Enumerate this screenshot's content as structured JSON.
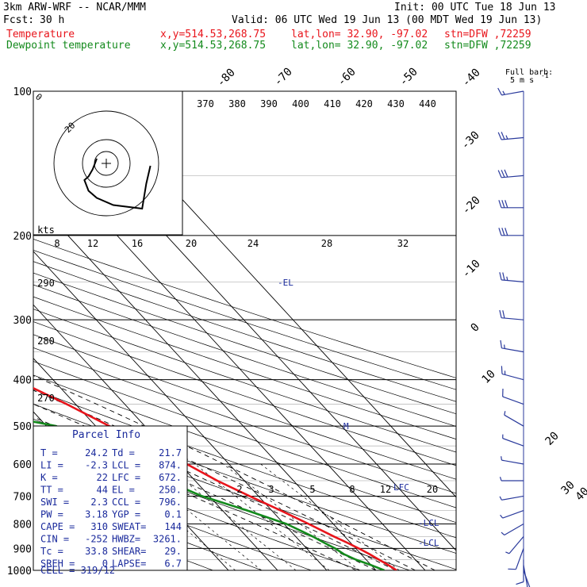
{
  "header": {
    "model": "3km ARW-WRF -- NCAR/MMM",
    "init": "Init: 00 UTC Tue 18 Jun 13",
    "fcst_label": "Fcst:",
    "fcst_value": "30 h",
    "valid": "Valid: 06 UTC Wed 19 Jun 13 (00 MDT Wed 19 Jun 13)",
    "temp_line": {
      "name": "Temperature",
      "xy": "x,y=514.53,268.75",
      "latlon": "lat,lon= 32.90, -97.02",
      "stn": "stn=DFW ,72259"
    },
    "dew_line": {
      "name": "Dewpoint temperature",
      "xy": "x,y=514.53,268.75",
      "latlon": "lat,lon= 32.90, -97.02",
      "stn": "stn=DFW ,72259"
    }
  },
  "colors": {
    "temperature": "#e8141b",
    "dewpoint": "#138a1c",
    "labels": "#1a2a9c",
    "hodograph": "#000000",
    "barbs": "#2a3a9c"
  },
  "barb_legend": {
    "title": "Full barb:",
    "value": "5 m s",
    "exp": "-1"
  },
  "parcel_info": {
    "title": "Parcel Info",
    "rows": [
      {
        "k1": "T   =",
        "v1": "24.2",
        "k2": "Td  =",
        "v2": "21.7"
      },
      {
        "k1": "LI  =",
        "v1": "-2.3",
        "k2": "LCL =",
        "v2": "874."
      },
      {
        "k1": "K   =",
        "v1": "22",
        "k2": "LFC =",
        "v2": "672."
      },
      {
        "k1": "TT  =",
        "v1": "44",
        "k2": "EL  =",
        "v2": "250."
      },
      {
        "k1": "SWI =",
        "v1": "2.3",
        "k2": "CCL =",
        "v2": "796."
      },
      {
        "k1": "PW  =",
        "v1": "3.18",
        "k2": "YGP =",
        "v2": "0.1"
      },
      {
        "k1": "CAPE =",
        "v1": "310",
        "k2": "SWEAT=",
        "v2": "144"
      },
      {
        "k1": "CIN  =",
        "v1": "-252",
        "k2": "HWBZ=",
        "v2": "3261."
      },
      {
        "k1": "Tc  =",
        "v1": "33.8",
        "k2": "SHEAR=",
        "v2": "29."
      },
      {
        "k1": "SREH =",
        "v1": "0",
        "k2": "LAPSE=",
        "v2": "6.7"
      }
    ],
    "cell": "CELL = 319/12"
  },
  "chart_data": {
    "type": "line",
    "subtype": "skew-T log-p",
    "pressure_levels": [
      100,
      200,
      300,
      400,
      500,
      600,
      700,
      800,
      900,
      1000
    ],
    "isotherm_labels": [
      "-80",
      "-70",
      "-60",
      "-50",
      "-40",
      "-30",
      "-20",
      "-10",
      "0",
      "10",
      "20",
      "30",
      "40"
    ],
    "theta_labels": [
      "370",
      "380",
      "390",
      "400",
      "410",
      "420",
      "430",
      "440"
    ],
    "theta_side_labels": [
      "290",
      "280",
      "270"
    ],
    "mixing_ratio_labels": [
      "2",
      "3",
      "5",
      "8",
      "12",
      "20"
    ],
    "hodo_speed_labels": [
      "kts",
      "8",
      "12",
      "16",
      "20",
      "24",
      "28",
      "32"
    ],
    "hodo_ring_labels": [
      "0",
      "20"
    ],
    "level_markers": [
      "-EL",
      "LFC",
      "-LCL",
      "-LCL",
      "M"
    ],
    "series": [
      {
        "name": "Temperature",
        "points": [
          [
            1000,
            24.2
          ],
          [
            975,
            23.5
          ],
          [
            950,
            22.6
          ],
          [
            925,
            21.7
          ],
          [
            900,
            20.6
          ],
          [
            875,
            19.3
          ],
          [
            850,
            17.8
          ],
          [
            800,
            15.0
          ],
          [
            750,
            11.8
          ],
          [
            700,
            8.2
          ],
          [
            650,
            4.5
          ],
          [
            600,
            1.4
          ],
          [
            550,
            -2.5
          ],
          [
            500,
            -7.2
          ],
          [
            450,
            -11.8
          ],
          [
            400,
            -17.6
          ],
          [
            350,
            -24.0
          ],
          [
            300,
            -31.8
          ],
          [
            250,
            -42.0
          ],
          [
            225,
            -47.5
          ],
          [
            200,
            -53.5
          ],
          [
            175,
            -59.6
          ],
          [
            150,
            -66.0
          ],
          [
            125,
            -70.0
          ],
          [
            100,
            -71.0
          ]
        ]
      },
      {
        "name": "Dewpoint temperature",
        "points": [
          [
            1000,
            21.7
          ],
          [
            975,
            20.0
          ],
          [
            950,
            17.9
          ],
          [
            925,
            16.5
          ],
          [
            900,
            15.8
          ],
          [
            875,
            14.6
          ],
          [
            850,
            13.5
          ],
          [
            800,
            10.5
          ],
          [
            750,
            5.0
          ],
          [
            700,
            -1.5
          ],
          [
            650,
            -6.0
          ],
          [
            600,
            -10.0
          ],
          [
            550,
            -14.5
          ],
          [
            500,
            -18.0
          ],
          [
            450,
            -37.0
          ],
          [
            400,
            -40.0
          ],
          [
            350,
            -44.0
          ],
          [
            300,
            -51.0
          ],
          [
            250,
            -60.0
          ],
          [
            200,
            -66.0
          ],
          [
            175,
            -70.0
          ],
          [
            150,
            -76.0
          ],
          [
            125,
            -82.0
          ],
          [
            100,
            -90.0
          ]
        ]
      }
    ],
    "hodograph": [
      [
        0,
        0
      ],
      [
        -1,
        3
      ],
      [
        -2,
        5
      ],
      [
        -3,
        6
      ],
      [
        -2,
        9
      ],
      [
        0,
        11
      ],
      [
        4,
        13
      ],
      [
        11,
        14
      ],
      [
        12,
        7
      ],
      [
        13,
        2
      ]
    ],
    "wind_profile": [
      {
        "p": 1000,
        "dir": 160,
        "spd": 4
      },
      {
        "p": 975,
        "dir": 170,
        "spd": 7
      },
      {
        "p": 950,
        "dir": 180,
        "spd": 9
      },
      {
        "p": 900,
        "dir": 200,
        "spd": 8
      },
      {
        "p": 850,
        "dir": 220,
        "spd": 7
      },
      {
        "p": 800,
        "dir": 240,
        "spd": 6
      },
      {
        "p": 750,
        "dir": 250,
        "spd": 5
      },
      {
        "p": 700,
        "dir": 260,
        "spd": 4
      },
      {
        "p": 650,
        "dir": 270,
        "spd": 3
      },
      {
        "p": 600,
        "dir": 280,
        "spd": 3
      },
      {
        "p": 550,
        "dir": 290,
        "spd": 3
      },
      {
        "p": 500,
        "dir": 300,
        "spd": 5
      },
      {
        "p": 450,
        "dir": 290,
        "spd": 11
      },
      {
        "p": 400,
        "dir": 285,
        "spd": 14
      },
      {
        "p": 350,
        "dir": 280,
        "spd": 17
      },
      {
        "p": 300,
        "dir": 275,
        "spd": 22
      },
      {
        "p": 250,
        "dir": 275,
        "spd": 26
      },
      {
        "p": 200,
        "dir": 270,
        "spd": 29
      },
      {
        "p": 175,
        "dir": 270,
        "spd": 29
      },
      {
        "p": 150,
        "dir": 265,
        "spd": 28
      },
      {
        "p": 125,
        "dir": 265,
        "spd": 26
      },
      {
        "p": 100,
        "dir": 260,
        "spd": 15
      }
    ]
  }
}
